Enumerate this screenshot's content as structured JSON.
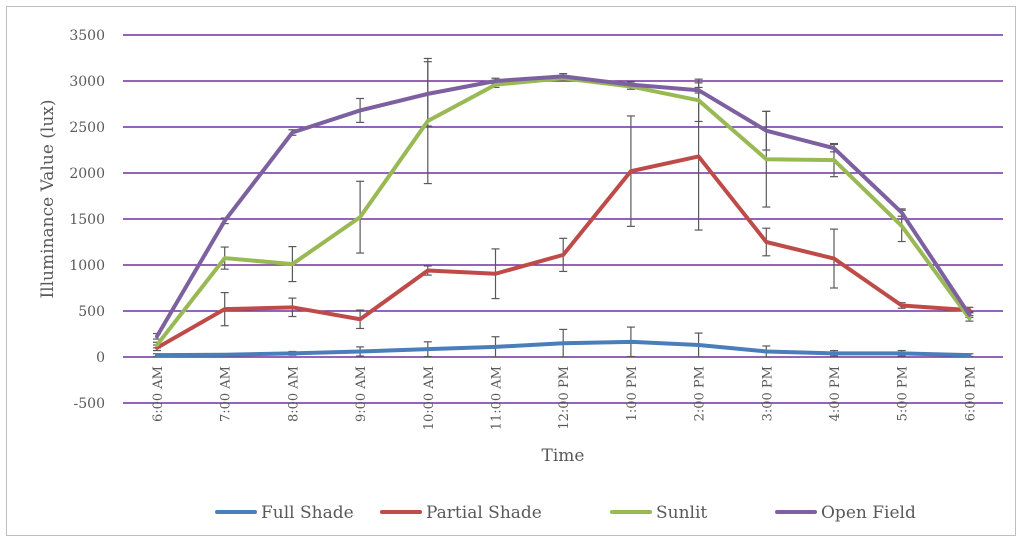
{
  "chart_data": {
    "type": "line",
    "title": "",
    "xlabel": "Time",
    "ylabel": "Illuminance Value (lux)",
    "ylim": [
      -500,
      3500
    ],
    "yticks": [
      -500,
      0,
      500,
      1000,
      1500,
      2000,
      2500,
      3000,
      3500
    ],
    "grid": true,
    "legend_position": "bottom",
    "categories": [
      "6:00 AM",
      "7:00 AM",
      "8:00 AM",
      "9:00 AM",
      "10:00 AM",
      "11:00 AM",
      "12:00 PM",
      "1:00 PM",
      "2:00 PM",
      "3:00 PM",
      "4:00 PM",
      "5:00 PM",
      "6:00 PM"
    ],
    "series": [
      {
        "name": "Full Shade",
        "color": "#4a7ebb",
        "values": [
          20,
          25,
          40,
          60,
          85,
          110,
          150,
          165,
          130,
          60,
          40,
          40,
          20
        ],
        "error": [
          15,
          10,
          20,
          50,
          80,
          110,
          150,
          160,
          130,
          60,
          30,
          30,
          15
        ]
      },
      {
        "name": "Partial Shade",
        "color": "#be4b48",
        "values": [
          100,
          520,
          540,
          410,
          940,
          905,
          1110,
          2020,
          2180,
          1250,
          1070,
          560,
          510
        ],
        "error": [
          30,
          180,
          100,
          100,
          50,
          270,
          180,
          600,
          800,
          150,
          320,
          30,
          30
        ]
      },
      {
        "name": "Sunlit",
        "color": "#98b954",
        "values": [
          130,
          1075,
          1010,
          1520,
          2565,
          2960,
          3030,
          2940,
          2790,
          2150,
          2140,
          1425,
          420
        ],
        "error": [
          30,
          120,
          190,
          390,
          680,
          30,
          30,
          30,
          230,
          520,
          180,
          170,
          30
        ]
      },
      {
        "name": "Open Field",
        "color": "#7d60a0",
        "values": [
          225,
          1480,
          2440,
          2680,
          2860,
          3000,
          3050,
          2960,
          2900,
          2460,
          2270,
          1570,
          460
        ],
        "error": [
          30,
          30,
          30,
          130,
          350,
          30,
          30,
          30,
          30,
          210,
          40,
          40,
          30
        ]
      }
    ]
  }
}
